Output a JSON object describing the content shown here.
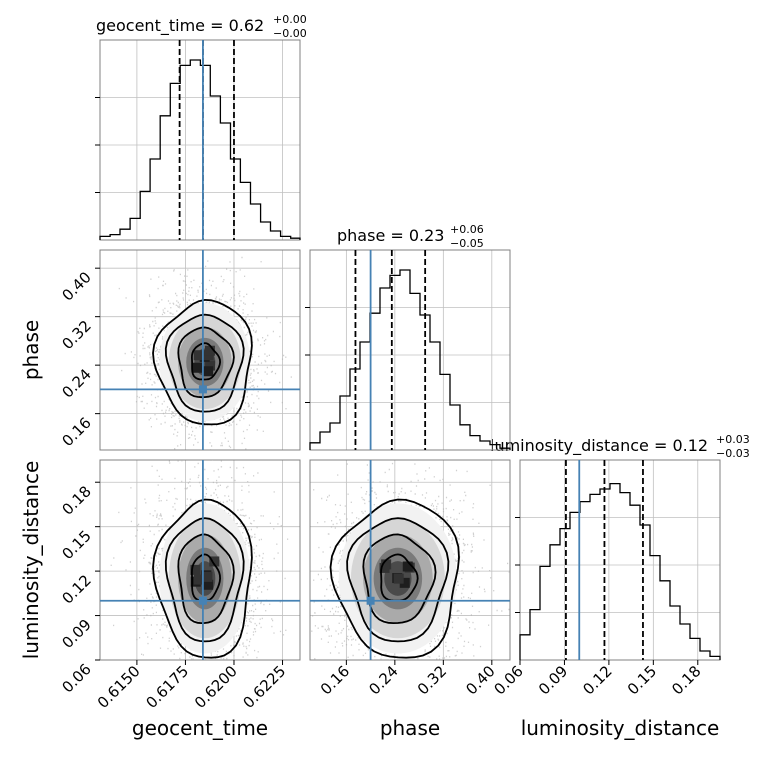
{
  "figure": {
    "titles": {
      "geocent_time": "geocent_time = 0.62",
      "geocent_time_sup": "+0.00",
      "geocent_time_sub": "−0.00",
      "phase": "phase = 0.23",
      "phase_sup": "+0.06",
      "phase_sub": "−0.05",
      "luminosity_distance": "luminosity_distance = 0.12",
      "luminosity_distance_sup": "+0.03",
      "luminosity_distance_sub": "−0.03"
    },
    "axis_labels": {
      "geocent_time": "geocent_time",
      "phase": "phase",
      "luminosity_distance": "luminosity_distance"
    }
  },
  "chart_data": {
    "type": "corner",
    "parameters": [
      "geocent_time",
      "phase",
      "luminosity_distance"
    ],
    "ranges": {
      "geocent_time": [
        0.6131,
        0.6234
      ],
      "phase": [
        0.1,
        0.43
      ],
      "luminosity_distance": [
        0.06,
        0.195
      ]
    },
    "ticks": {
      "geocent_time": [
        0.615,
        0.6175,
        0.62,
        0.6225
      ],
      "phase": [
        0.16,
        0.24,
        0.32,
        0.4
      ],
      "luminosity_distance": [
        0.06,
        0.09,
        0.12,
        0.15,
        0.18
      ]
    },
    "tick_labels": {
      "geocent_time": [
        "0.6150",
        "0.6175",
        "0.6200",
        "0.6225"
      ],
      "phase": [
        "0.16",
        "0.24",
        "0.32",
        "0.40"
      ],
      "luminosity_distance": [
        "0.06",
        "0.09",
        "0.12",
        "0.15",
        "0.18"
      ]
    },
    "truths": {
      "geocent_time": 0.6184,
      "phase": 0.2,
      "luminosity_distance": 0.1
    },
    "quantiles": {
      "geocent_time": [
        0.6172,
        0.6184,
        0.62
      ],
      "phase": [
        0.175,
        0.235,
        0.29
      ],
      "luminosity_distance": [
        0.091,
        0.117,
        0.143
      ]
    },
    "histograms": {
      "geocent_time": {
        "edges": [
          0.6131,
          0.61362,
          0.61413,
          0.61465,
          0.61517,
          0.61568,
          0.6162,
          0.61672,
          0.61723,
          0.61775,
          0.61827,
          0.61878,
          0.6193,
          0.61982,
          0.62033,
          0.62085,
          0.62137,
          0.62188,
          0.6224,
          0.62292,
          0.6234
        ],
        "counts": [
          0.02,
          0.03,
          0.06,
          0.12,
          0.27,
          0.45,
          0.69,
          0.87,
          0.97,
          1.0,
          0.97,
          0.8,
          0.65,
          0.45,
          0.32,
          0.2,
          0.1,
          0.05,
          0.02,
          0.01
        ]
      },
      "phase": {
        "edges": [
          0.1,
          0.1165,
          0.133,
          0.1495,
          0.166,
          0.1825,
          0.199,
          0.2155,
          0.232,
          0.2485,
          0.265,
          0.2815,
          0.298,
          0.3145,
          0.331,
          0.3475,
          0.364,
          0.3805,
          0.397,
          0.4135,
          0.43
        ],
        "counts": [
          0.04,
          0.1,
          0.15,
          0.3,
          0.45,
          0.6,
          0.76,
          0.9,
          0.97,
          1.0,
          0.87,
          0.75,
          0.6,
          0.42,
          0.25,
          0.14,
          0.08,
          0.05,
          0.03,
          0.01
        ]
      },
      "luminosity_distance": {
        "edges": [
          0.06,
          0.06675,
          0.0735,
          0.08025,
          0.087,
          0.09375,
          0.1005,
          0.10725,
          0.114,
          0.12075,
          0.1275,
          0.13425,
          0.141,
          0.14775,
          0.1545,
          0.16125,
          0.168,
          0.17475,
          0.1815,
          0.18825,
          0.195
        ],
        "counts": [
          0.14,
          0.28,
          0.52,
          0.64,
          0.73,
          0.82,
          0.88,
          0.92,
          0.95,
          0.98,
          0.93,
          0.86,
          0.75,
          0.58,
          0.44,
          0.3,
          0.2,
          0.12,
          0.05,
          0.02
        ]
      }
    },
    "grid": true,
    "density_center": {
      "geocent_time": 0.6185,
      "phase": 0.245,
      "luminosity_distance": 0.115
    },
    "density_sigma": {
      "geocent_time": 0.0012,
      "phase": 0.05,
      "luminosity_distance": 0.026
    }
  },
  "colors": {
    "truth": "#4682b4",
    "histogram": "#000000",
    "contour": "#000000",
    "scatter": "#b0b0b0",
    "grid": "#c0c0c0"
  }
}
